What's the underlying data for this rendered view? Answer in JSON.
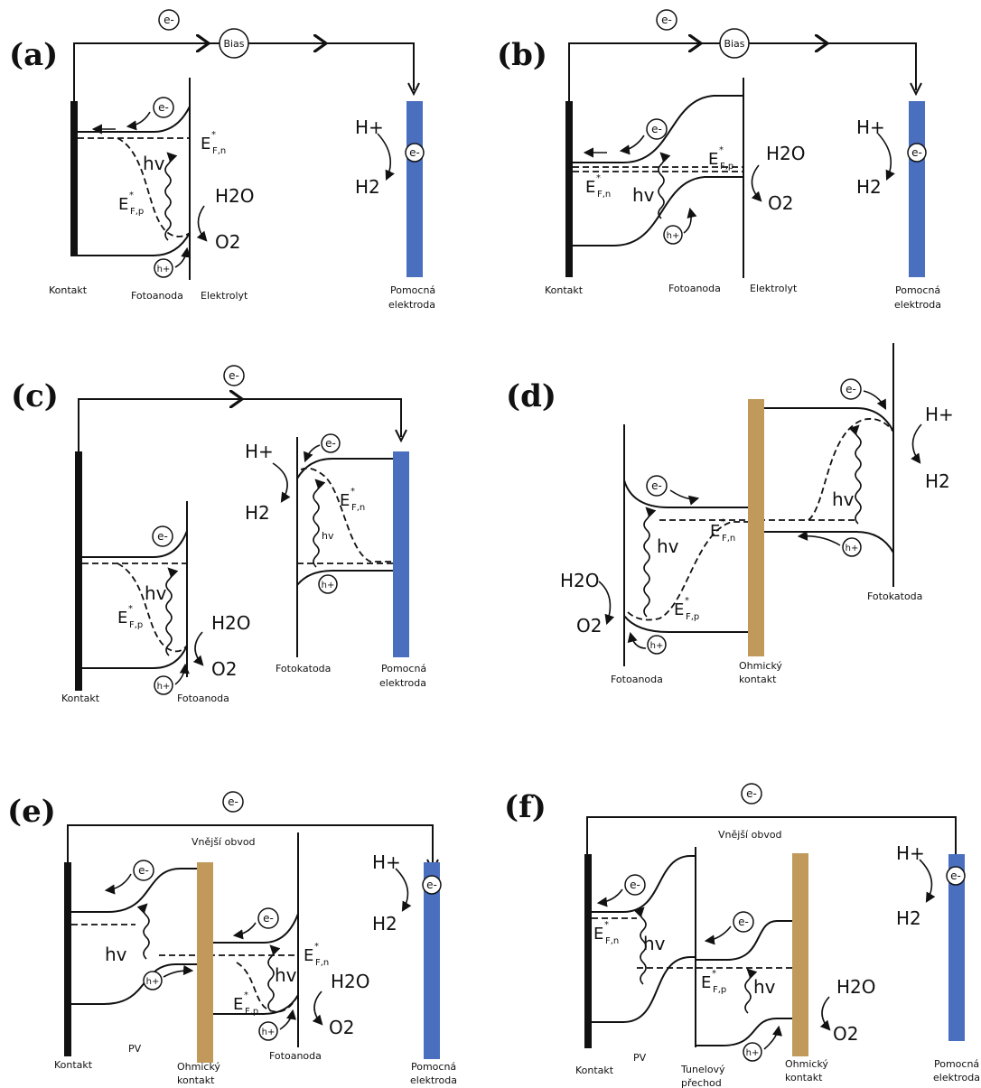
{
  "colors": {
    "line": "#111111",
    "counter_electrode": "#4a6fbf",
    "ohmic_contact": "#c19a5b",
    "contact_bar": "#111111"
  },
  "symbols": {
    "electron": "e-",
    "hole": "h+",
    "hv": "hv",
    "proton": "H+",
    "hydrogen": "H2",
    "water": "H2O",
    "oxygen": "O2",
    "bias": "Bias",
    "e_fermi": "E",
    "fn_sub": "F,n",
    "fp_sub": "F,p",
    "star": "*"
  },
  "panels": [
    {
      "letter": "(a)",
      "labels": [
        "Kontakt",
        "Fotoanoda",
        "Elektrolyt",
        "Pomocná",
        "elektroda"
      ]
    },
    {
      "letter": "(b)",
      "labels": [
        "Kontakt",
        "Fotoanoda",
        "Elektrolyt",
        "Pomocná",
        "elektroda"
      ]
    },
    {
      "letter": "(c)",
      "labels": [
        "Kontakt",
        "Fotoanoda",
        "Fotokatoda",
        "Pomocná",
        "elektroda"
      ]
    },
    {
      "letter": "(d)",
      "labels": [
        "Fotoanoda",
        "Ohmický",
        "kontakt",
        "Fotokatoda"
      ]
    },
    {
      "letter": "(e)",
      "labels": [
        "Vnější obvod",
        "Kontakt",
        "PV",
        "Ohmický",
        "kontakt",
        "Fotoanoda",
        "Pomocná",
        "elektroda"
      ]
    },
    {
      "letter": "(f)",
      "labels": [
        "Vnější obvod",
        "Kontakt",
        "PV",
        "Tunelový",
        "přechod",
        "Ohmický",
        "kontakt",
        "Pomocná",
        "elektroda"
      ]
    }
  ]
}
